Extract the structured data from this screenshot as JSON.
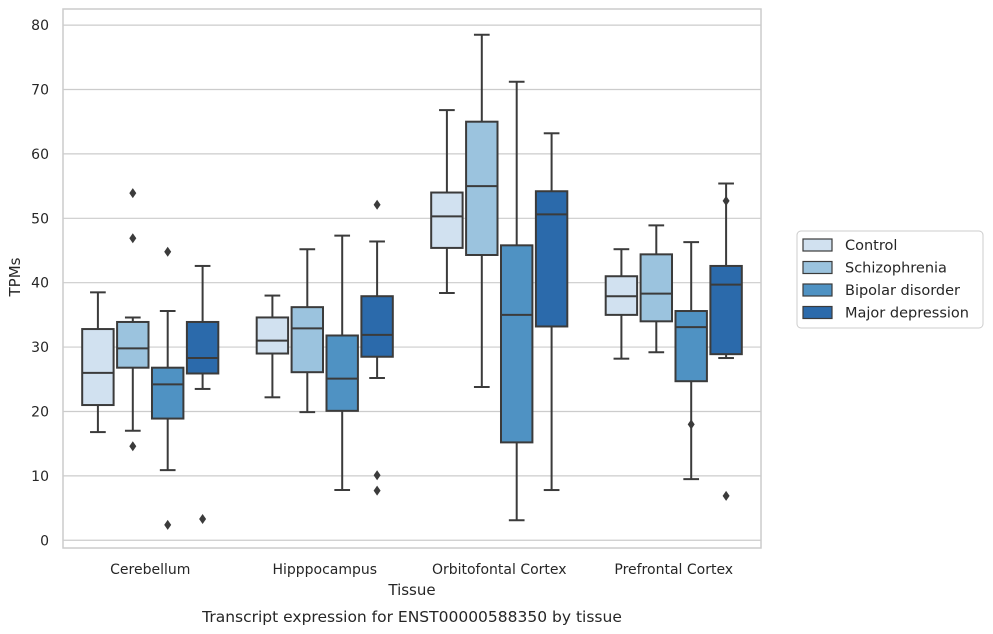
{
  "chart_data": {
    "type": "boxplot",
    "title": "Transcript expression for ENST00000588350 by tissue",
    "xlabel": "Tissue",
    "ylabel": "TPMs",
    "ylim": [
      -1.2,
      82.5
    ],
    "yticks": [
      0,
      10,
      20,
      30,
      40,
      50,
      60,
      70,
      80
    ],
    "grid": "horizontal",
    "legend_position": "right",
    "categories": [
      "Cerebellum",
      "Hipppocampus",
      "Orbitofontal Cortex",
      "Prefrontal Cortex"
    ],
    "series": [
      {
        "name": "Control",
        "color": "#d1e1f0",
        "boxes": [
          {
            "whisker_low": 16.8,
            "q1": 21.0,
            "median": 26.0,
            "q3": 32.8,
            "whisker_high": 38.5,
            "outliers": []
          },
          {
            "whisker_low": 22.2,
            "q1": 29.0,
            "median": 31.0,
            "q3": 34.6,
            "whisker_high": 38.0,
            "outliers": []
          },
          {
            "whisker_low": 38.4,
            "q1": 45.4,
            "median": 50.3,
            "q3": 54.0,
            "whisker_high": 66.8,
            "outliers": []
          },
          {
            "whisker_low": 28.2,
            "q1": 35.0,
            "median": 37.9,
            "q3": 41.0,
            "whisker_high": 45.2,
            "outliers": []
          }
        ]
      },
      {
        "name": "Schizophrenia",
        "color": "#9bc3de",
        "boxes": [
          {
            "whisker_low": 17.0,
            "q1": 26.8,
            "median": 29.8,
            "q3": 33.9,
            "whisker_high": 34.6,
            "outliers": [
              53.9,
              46.9,
              14.6
            ]
          },
          {
            "whisker_low": 19.9,
            "q1": 26.1,
            "median": 32.9,
            "q3": 36.2,
            "whisker_high": 45.2,
            "outliers": []
          },
          {
            "whisker_low": 23.8,
            "q1": 44.3,
            "median": 55.0,
            "q3": 65.0,
            "whisker_high": 78.5,
            "outliers": []
          },
          {
            "whisker_low": 29.2,
            "q1": 34.0,
            "median": 38.3,
            "q3": 44.4,
            "whisker_high": 48.9,
            "outliers": []
          }
        ]
      },
      {
        "name": "Bipolar disorder",
        "color": "#4f92c3",
        "boxes": [
          {
            "whisker_low": 10.9,
            "q1": 18.9,
            "median": 24.2,
            "q3": 26.8,
            "whisker_high": 35.6,
            "outliers": [
              44.8,
              2.4
            ]
          },
          {
            "whisker_low": 7.8,
            "q1": 20.1,
            "median": 25.1,
            "q3": 31.8,
            "whisker_high": 47.3,
            "outliers": []
          },
          {
            "whisker_low": 3.1,
            "q1": 15.2,
            "median": 35.0,
            "q3": 45.8,
            "whisker_high": 71.2,
            "outliers": []
          },
          {
            "whisker_low": 9.5,
            "q1": 24.7,
            "median": 33.1,
            "q3": 35.6,
            "whisker_high": 46.3,
            "outliers": [
              18.0
            ]
          }
        ]
      },
      {
        "name": "Major depression",
        "color": "#2b6aab",
        "boxes": [
          {
            "whisker_low": 23.5,
            "q1": 25.9,
            "median": 28.3,
            "q3": 33.9,
            "whisker_high": 42.6,
            "outliers": [
              3.3
            ]
          },
          {
            "whisker_low": 25.2,
            "q1": 28.5,
            "median": 31.9,
            "q3": 37.9,
            "whisker_high": 46.4,
            "outliers": [
              52.1,
              10.1,
              7.7
            ]
          },
          {
            "whisker_low": 7.8,
            "q1": 33.2,
            "median": 50.6,
            "q3": 54.2,
            "whisker_high": 63.2,
            "outliers": []
          },
          {
            "whisker_low": 28.3,
            "q1": 28.9,
            "median": 39.7,
            "q3": 42.6,
            "whisker_high": 55.4,
            "outliers": [
              52.7,
              6.9
            ]
          }
        ]
      }
    ]
  }
}
